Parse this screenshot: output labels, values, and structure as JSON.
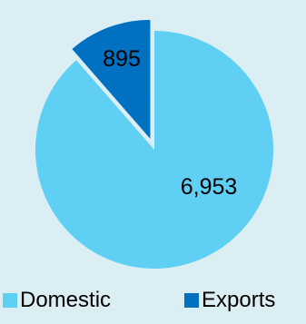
{
  "chart_data": {
    "type": "pie",
    "title": "",
    "categories": [
      "Domestic",
      "Exports"
    ],
    "values": [
      6953,
      895
    ],
    "value_labels": [
      "6,953",
      "895"
    ],
    "colors": [
      "#5fd0f3",
      "#0070c0"
    ],
    "exploded_slice": "Exports",
    "legend": {
      "position": "bottom",
      "items": [
        {
          "label": "Domestic",
          "color": "#5fd0f3"
        },
        {
          "label": "Exports",
          "color": "#0070c0"
        }
      ]
    }
  },
  "background_color": "#dbeef3"
}
